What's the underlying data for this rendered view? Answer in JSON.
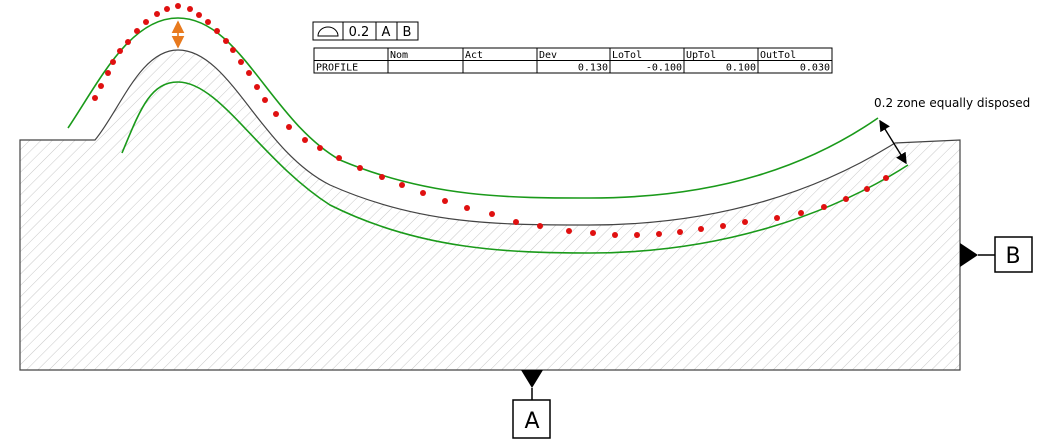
{
  "feature_control_frame": {
    "tolerance": "0.2",
    "datums": [
      "A",
      "B"
    ]
  },
  "table": {
    "columns": [
      "Nom",
      "Act",
      "Dev",
      "LoTol",
      "UpTol",
      "OutTol"
    ],
    "rows": [
      {
        "label": "PROFILE",
        "Dev": "0.130",
        "LoTol": "-0.100",
        "UpTol": "0.100",
        "OutTol": "0.030"
      }
    ]
  },
  "annotation": "0.2 zone equally disposed",
  "datum_labels": [
    "A",
    "B"
  ]
}
